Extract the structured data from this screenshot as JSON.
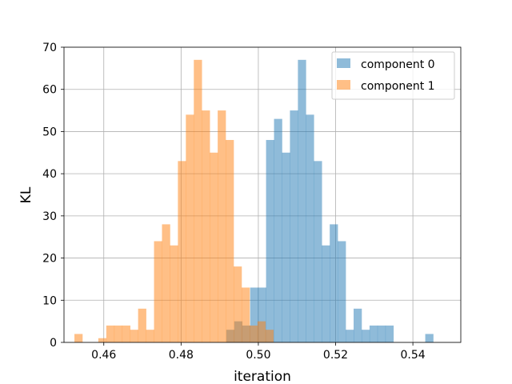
{
  "chart_data": {
    "type": "bar",
    "title": "",
    "xlabel": "iteration",
    "ylabel": "KL",
    "xlim": [
      0.4497,
      0.5524
    ],
    "ylim": [
      0,
      70
    ],
    "xticks": [
      0.46,
      0.48,
      0.5,
      0.52,
      0.54
    ],
    "xtick_labels": [
      "0.46",
      "0.48",
      "0.50",
      "0.52",
      "0.54"
    ],
    "yticks": [
      0,
      10,
      20,
      30,
      40,
      50,
      60,
      70
    ],
    "ytick_labels": [
      "0",
      "10",
      "20",
      "30",
      "40",
      "50",
      "60",
      "70"
    ],
    "grid": true,
    "legend_position": "top-right",
    "series": [
      {
        "name": "component 0",
        "color": "#1f77b4",
        "opacity": 0.5,
        "bin_start": 0.4917,
        "bin_width": 0.00206,
        "counts": [
          3,
          5,
          4,
          13,
          13,
          48,
          53,
          45,
          55,
          67,
          54,
          43,
          23,
          28,
          24,
          3,
          8,
          3,
          4,
          4,
          4,
          0,
          0,
          0,
          0,
          2
        ]
      },
      {
        "name": "component 1",
        "color": "#ff7f0e",
        "opacity": 0.5,
        "bin_start": 0.4524,
        "bin_width": 0.00206,
        "counts": [
          2,
          0,
          0,
          1,
          4,
          4,
          4,
          3,
          8,
          3,
          24,
          28,
          23,
          43,
          54,
          67,
          55,
          45,
          55,
          48,
          18,
          13,
          4,
          5,
          3
        ]
      }
    ]
  }
}
